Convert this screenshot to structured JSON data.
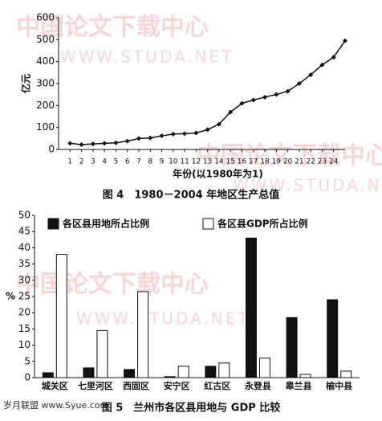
{
  "watermarks": [
    "中国论文下载中心",
    "WWW.STUDA.NET",
    "岁月联盟 www.Syue.com"
  ],
  "chart_data": [
    {
      "type": "line",
      "caption": "图 4　1980－2004 年地区生产总值",
      "y_label": "亿元",
      "x_label": "年份(以1980年为1)",
      "x": [
        1,
        2,
        3,
        4,
        5,
        6,
        7,
        8,
        9,
        10,
        11,
        12,
        13,
        14,
        15,
        16,
        17,
        18,
        19,
        20,
        21,
        22,
        23,
        24,
        25
      ],
      "values": [
        28,
        22,
        25,
        28,
        30,
        38,
        50,
        52,
        62,
        70,
        72,
        75,
        90,
        115,
        170,
        210,
        225,
        238,
        250,
        265,
        300,
        340,
        385,
        420,
        495
      ],
      "color": "#111111",
      "xlim": [
        0,
        25
      ],
      "xticks": [
        1,
        2,
        3,
        4,
        5,
        6,
        7,
        8,
        9,
        10,
        11,
        12,
        13,
        14,
        15,
        16,
        17,
        18,
        19,
        20,
        21,
        22,
        23,
        24
      ],
      "ylim": [
        0,
        600
      ],
      "yticks": [
        0,
        100,
        200,
        300,
        400,
        500,
        600
      ]
    },
    {
      "type": "bar",
      "caption": "图 5　兰州市各区县用地与 GDP 比较",
      "y_label": "%",
      "categories": [
        "城关区",
        "七里河区",
        "西固区",
        "安宁区",
        "红古区",
        "永登县",
        "皋兰县",
        "榆中县"
      ],
      "series": [
        {
          "name": "各区县用地所占比例",
          "color": "#111111",
          "values": [
            1.5,
            3,
            2.5,
            0.3,
            3.5,
            43,
            18.5,
            24
          ]
        },
        {
          "name": "各区县GDP所占比例",
          "color": "#ffffff",
          "values": [
            38,
            14.5,
            26.5,
            3.5,
            4.5,
            6,
            1,
            2
          ]
        }
      ],
      "ylim": [
        0,
        50
      ],
      "yticks": [
        0,
        5,
        10,
        15,
        20,
        25,
        30,
        35,
        40,
        45,
        50
      ]
    }
  ]
}
